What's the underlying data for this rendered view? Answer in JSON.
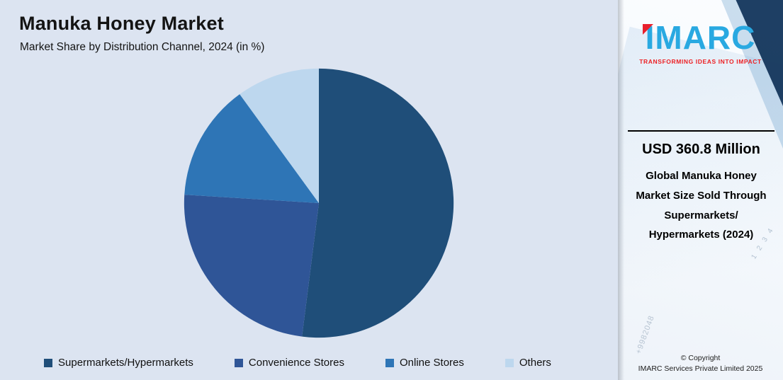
{
  "chart_data": {
    "type": "pie",
    "title": "Manuka Honey Market",
    "subtitle": "Market Share by Distribution Channel, 2024 (in %)",
    "categories": [
      "Supermarkets/Hypermarkets",
      "Convenience Stores",
      "Online Stores",
      "Others"
    ],
    "values": [
      52,
      24,
      14,
      10
    ],
    "colors": [
      "#1f4e79",
      "#2f5597",
      "#2e75b6",
      "#bdd7ee"
    ],
    "legend_position": "bottom",
    "start_angle_deg": 0,
    "background": "#dce4f1"
  },
  "sidebar": {
    "logo_text": "IMARC",
    "tagline": "TRANSFORMING IDEAS INTO IMPACT",
    "stat_value": "USD 360.8 Million",
    "stat_label": "Global Manuka Honey Market Size Sold Through Supermarkets/ Hypermarkets (2024)",
    "copyright_line1": "© Copyright",
    "copyright_line2": "IMARC Services Private Limited 2025",
    "watermark_numbers_1": "+9982048",
    "watermark_numbers_2": "1 2 3 4"
  },
  "colors": {
    "accent_blue": "#29a9e1",
    "accent_red": "#ed2024",
    "panel_dark_corner": "#14365c",
    "text_dark": "#141414"
  }
}
